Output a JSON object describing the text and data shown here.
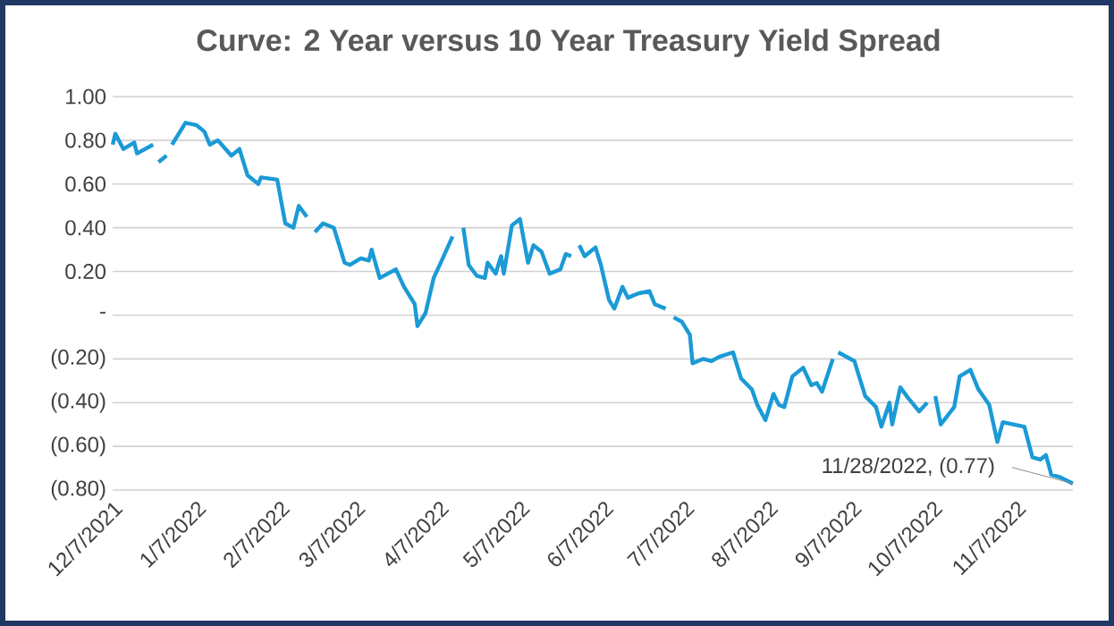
{
  "chart_data": {
    "type": "line",
    "title": "Curve: 2 Year versus 10 Year Treasury Yield Spread",
    "x": [
      "2021-12-07",
      "2021-12-08",
      "2021-12-11",
      "2021-12-15",
      "2021-12-16",
      "2021-12-22",
      "2021-12-23",
      "2021-12-24",
      "2021-12-27",
      "2021-12-28",
      "2021-12-29",
      "2022-01-03",
      "2022-01-07",
      "2022-01-10",
      "2022-01-12",
      "2022-01-15",
      "2022-01-20",
      "2022-01-23",
      "2022-01-26",
      "2022-01-30",
      "2022-01-31",
      "2022-02-06",
      "2022-02-09",
      "2022-02-12",
      "2022-02-14",
      "2022-02-17",
      "2022-02-18",
      "2022-02-20",
      "2022-02-23",
      "2022-02-27",
      "2022-03-03",
      "2022-03-05",
      "2022-03-09",
      "2022-03-12",
      "2022-03-13",
      "2022-03-16",
      "2022-03-22",
      "2022-03-25",
      "2022-03-29",
      "2022-03-30",
      "2022-04-02",
      "2022-04-05",
      "2022-04-08",
      "2022-04-12",
      "2022-04-14",
      "2022-04-16",
      "2022-04-18",
      "2022-04-21",
      "2022-04-24",
      "2022-04-25",
      "2022-04-28",
      "2022-04-30",
      "2022-05-01",
      "2022-05-04",
      "2022-05-07",
      "2022-05-10",
      "2022-05-12",
      "2022-05-15",
      "2022-05-18",
      "2022-05-22",
      "2022-05-24",
      "2022-05-26",
      "2022-05-27",
      "2022-05-29",
      "2022-05-31",
      "2022-06-04",
      "2022-06-06",
      "2022-06-09",
      "2022-06-11",
      "2022-06-14",
      "2022-06-16",
      "2022-06-20",
      "2022-06-24",
      "2022-06-26",
      "2022-06-30",
      "2022-07-01",
      "2022-07-03",
      "2022-07-06",
      "2022-07-09",
      "2022-07-10",
      "2022-07-14",
      "2022-07-17",
      "2022-07-20",
      "2022-07-25",
      "2022-07-28",
      "2022-08-01",
      "2022-08-03",
      "2022-08-06",
      "2022-08-09",
      "2022-08-11",
      "2022-08-13",
      "2022-08-16",
      "2022-08-20",
      "2022-08-23",
      "2022-08-25",
      "2022-08-27",
      "2022-08-31",
      "2022-09-01",
      "2022-09-02",
      "2022-09-08",
      "2022-09-12",
      "2022-09-16",
      "2022-09-18",
      "2022-09-21",
      "2022-09-22",
      "2022-09-25",
      "2022-09-28",
      "2022-10-02",
      "2022-10-05",
      "2022-10-06",
      "2022-10-08",
      "2022-10-10",
      "2022-10-15",
      "2022-10-17",
      "2022-10-21",
      "2022-10-24",
      "2022-10-28",
      "2022-10-31",
      "2022-11-02",
      "2022-11-06",
      "2022-11-10",
      "2022-11-13",
      "2022-11-16",
      "2022-11-18",
      "2022-11-20",
      "2022-11-23",
      "2022-11-28"
    ],
    "series": [
      {
        "color": "#1b9ad6",
        "values": [
          0.78,
          0.83,
          0.76,
          0.79,
          0.74,
          0.78,
          null,
          0.7,
          0.73,
          null,
          0.78,
          0.88,
          0.87,
          0.84,
          0.78,
          0.8,
          0.73,
          0.76,
          0.64,
          0.6,
          0.63,
          0.62,
          0.42,
          0.4,
          0.5,
          0.45,
          null,
          0.38,
          0.42,
          0.4,
          0.24,
          0.23,
          0.26,
          0.25,
          0.3,
          0.17,
          0.21,
          0.13,
          0.05,
          -0.05,
          0.01,
          0.17,
          0.25,
          0.36,
          null,
          0.4,
          0.23,
          0.18,
          0.17,
          0.24,
          0.19,
          0.27,
          0.19,
          0.41,
          0.44,
          0.24,
          0.32,
          0.29,
          0.19,
          0.21,
          0.28,
          0.27,
          null,
          0.32,
          0.27,
          0.31,
          0.23,
          0.07,
          0.03,
          0.13,
          0.08,
          0.1,
          0.11,
          0.05,
          0.03,
          null,
          -0.01,
          -0.03,
          -0.09,
          -0.22,
          -0.2,
          -0.21,
          -0.19,
          -0.17,
          -0.29,
          -0.34,
          -0.41,
          -0.48,
          -0.36,
          -0.41,
          -0.42,
          -0.28,
          -0.24,
          -0.32,
          -0.31,
          -0.35,
          -0.2,
          null,
          -0.17,
          -0.21,
          -0.37,
          -0.42,
          -0.51,
          -0.4,
          -0.5,
          -0.33,
          -0.38,
          -0.44,
          -0.4,
          null,
          -0.37,
          -0.5,
          -0.42,
          -0.28,
          -0.25,
          -0.34,
          -0.41,
          -0.58,
          -0.49,
          -0.5,
          -0.51,
          -0.65,
          -0.66,
          -0.64,
          -0.73,
          -0.74,
          -0.77
        ]
      }
    ],
    "xlim": [
      "2021-12-07",
      "2022-11-28"
    ],
    "xticks": [
      {
        "value": "2021-12-07",
        "label": "12/7/2021"
      },
      {
        "value": "2022-01-07",
        "label": "1/7/2022"
      },
      {
        "value": "2022-02-07",
        "label": "2/7/2022"
      },
      {
        "value": "2022-03-07",
        "label": "3/7/2022"
      },
      {
        "value": "2022-04-07",
        "label": "4/7/2022"
      },
      {
        "value": "2022-05-07",
        "label": "5/7/2022"
      },
      {
        "value": "2022-06-07",
        "label": "6/7/2022"
      },
      {
        "value": "2022-07-07",
        "label": "7/7/2022"
      },
      {
        "value": "2022-08-07",
        "label": "8/7/2022"
      },
      {
        "value": "2022-09-07",
        "label": "9/7/2022"
      },
      {
        "value": "2022-10-07",
        "label": "10/7/2022"
      },
      {
        "value": "2022-11-07",
        "label": "11/7/2022"
      }
    ],
    "ylim": [
      -0.8,
      1.0
    ],
    "yticks": [
      {
        "value": 1.0,
        "label": "1.00"
      },
      {
        "value": 0.8,
        "label": "0.80"
      },
      {
        "value": 0.6,
        "label": "0.60"
      },
      {
        "value": 0.4,
        "label": "0.40"
      },
      {
        "value": 0.2,
        "label": "0.20"
      },
      {
        "value": 0,
        "label": "-"
      },
      {
        "value": -0.2,
        "label": "(0.20)"
      },
      {
        "value": -0.4,
        "label": "(0.40)"
      },
      {
        "value": -0.6,
        "label": "(0.60)"
      },
      {
        "value": -0.8,
        "label": "(0.80)"
      }
    ],
    "grid": "y",
    "annotations": [
      {
        "text": "11/28/2022,  (0.77)",
        "x": "2022-11-28",
        "y": -0.77
      }
    ]
  }
}
